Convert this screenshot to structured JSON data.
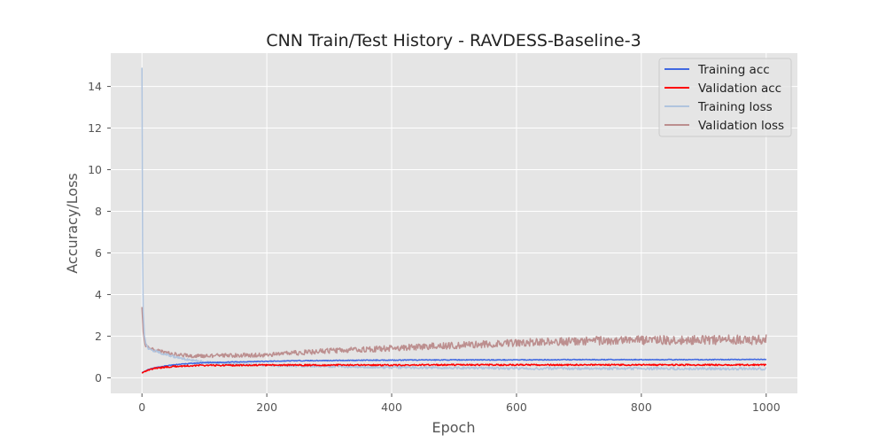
{
  "chart_data": {
    "type": "line",
    "title": "CNN Train/Test History -  RAVDESS-Baseline-3",
    "xlabel": "Epoch",
    "ylabel": "Accuracy/Loss",
    "xlim": [
      -50,
      1050
    ],
    "ylim": [
      -0.75,
      15.6
    ],
    "xticks": [
      0,
      200,
      400,
      600,
      800,
      1000
    ],
    "yticks": [
      0,
      2,
      4,
      6,
      8,
      10,
      12,
      14
    ],
    "grid": true,
    "legend_position": "top-right",
    "series": [
      {
        "name": "Training acc",
        "color": "#4169e1",
        "points": [
          [
            0,
            0.25
          ],
          [
            10,
            0.38
          ],
          [
            20,
            0.47
          ],
          [
            40,
            0.58
          ],
          [
            60,
            0.65
          ],
          [
            80,
            0.69
          ],
          [
            100,
            0.72
          ],
          [
            150,
            0.76
          ],
          [
            200,
            0.79
          ],
          [
            250,
            0.82
          ],
          [
            300,
            0.83
          ],
          [
            400,
            0.85
          ],
          [
            500,
            0.86
          ],
          [
            600,
            0.86
          ],
          [
            700,
            0.87
          ],
          [
            800,
            0.87
          ],
          [
            900,
            0.87
          ],
          [
            1000,
            0.88
          ]
        ]
      },
      {
        "name": "Validation acc",
        "color": "#ff0000",
        "points": [
          [
            0,
            0.22
          ],
          [
            5,
            0.32
          ],
          [
            10,
            0.38
          ],
          [
            20,
            0.45
          ],
          [
            40,
            0.52
          ],
          [
            60,
            0.56
          ],
          [
            80,
            0.58
          ],
          [
            100,
            0.6
          ],
          [
            150,
            0.6
          ],
          [
            200,
            0.61
          ],
          [
            300,
            0.61
          ],
          [
            400,
            0.61
          ],
          [
            500,
            0.62
          ],
          [
            600,
            0.62
          ],
          [
            700,
            0.62
          ],
          [
            800,
            0.62
          ],
          [
            900,
            0.62
          ],
          [
            1000,
            0.62
          ]
        ]
      },
      {
        "name": "Training loss",
        "color": "#b0c4de",
        "points": [
          [
            0,
            14.9
          ],
          [
            1,
            6.0
          ],
          [
            2,
            3.2
          ],
          [
            4,
            2.0
          ],
          [
            7,
            1.6
          ],
          [
            10,
            1.4
          ],
          [
            20,
            1.3
          ],
          [
            40,
            1.1
          ],
          [
            60,
            0.95
          ],
          [
            80,
            0.85
          ],
          [
            100,
            0.75
          ],
          [
            150,
            0.65
          ],
          [
            200,
            0.6
          ],
          [
            300,
            0.55
          ],
          [
            400,
            0.5
          ],
          [
            500,
            0.48
          ],
          [
            600,
            0.45
          ],
          [
            700,
            0.45
          ],
          [
            800,
            0.44
          ],
          [
            900,
            0.44
          ],
          [
            1000,
            0.43
          ]
        ]
      },
      {
        "name": "Validation loss",
        "color": "#bc8f8f",
        "points": [
          [
            0,
            3.4
          ],
          [
            2,
            2.2
          ],
          [
            5,
            1.6
          ],
          [
            10,
            1.45
          ],
          [
            20,
            1.35
          ],
          [
            40,
            1.2
          ],
          [
            60,
            1.1
          ],
          [
            80,
            1.05
          ],
          [
            100,
            1.05
          ],
          [
            150,
            1.08
          ],
          [
            200,
            1.1
          ],
          [
            250,
            1.2
          ],
          [
            300,
            1.3
          ],
          [
            350,
            1.35
          ],
          [
            400,
            1.42
          ],
          [
            450,
            1.5
          ],
          [
            500,
            1.55
          ],
          [
            550,
            1.62
          ],
          [
            600,
            1.68
          ],
          [
            650,
            1.72
          ],
          [
            700,
            1.76
          ],
          [
            750,
            1.8
          ],
          [
            800,
            1.8
          ],
          [
            850,
            1.82
          ],
          [
            900,
            1.83
          ],
          [
            950,
            1.82
          ],
          [
            1000,
            1.85
          ]
        ]
      }
    ]
  }
}
